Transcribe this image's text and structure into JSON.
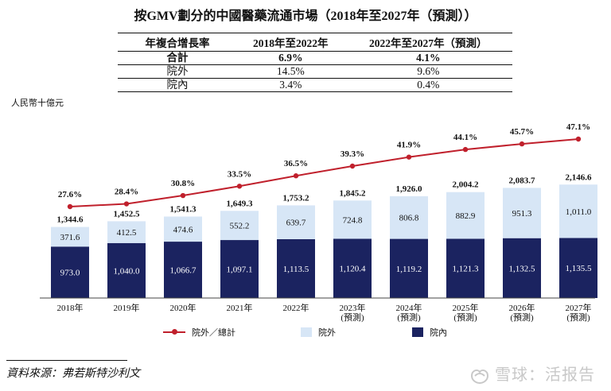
{
  "title": "按GMV劃分的中國醫藥流通市場（2018年至2027年（預測））",
  "cagr_table": {
    "headers": [
      "年複合增長率",
      "2018年至2022年",
      "2022年至2027年（預測）"
    ],
    "rows": [
      [
        "合計",
        "6.9%",
        "4.1%"
      ],
      [
        "院外",
        "14.5%",
        "9.6%"
      ],
      [
        "院內",
        "3.4%",
        "0.4%"
      ]
    ]
  },
  "unit": "人民幣十億元",
  "chart_data": {
    "type": "bar",
    "stacked": true,
    "categories": [
      "2018年",
      "2019年",
      "2020年",
      "2021年",
      "2022年",
      "2023年\n(預測)",
      "2024年\n(預測)",
      "2025年\n(預測)",
      "2026年\n(預測)",
      "2027年\n(預測)"
    ],
    "series": [
      {
        "name": "院內",
        "color": "#1b2360",
        "values": [
          973.0,
          1040.0,
          1066.7,
          1097.1,
          1113.5,
          1120.4,
          1119.2,
          1121.3,
          1132.5,
          1135.5
        ],
        "labels": [
          "973.0",
          "1,040.0",
          "1,066.7",
          "1,097.1",
          "1,113.5",
          "1,120.4",
          "1,119.2",
          "1,121.3",
          "1,132.5",
          "1,135.5"
        ]
      },
      {
        "name": "院外",
        "color": "#d7e6f6",
        "values": [
          371.6,
          412.5,
          474.6,
          552.2,
          639.7,
          724.8,
          806.8,
          882.9,
          951.3,
          1011.0
        ],
        "labels": [
          "371.6",
          "412.5",
          "474.6",
          "552.2",
          "639.7",
          "724.8",
          "806.8",
          "882.9",
          "951.3",
          "1,011.0"
        ]
      }
    ],
    "totals": [
      1344.6,
      1452.5,
      1541.3,
      1649.3,
      1753.2,
      1845.2,
      1926.0,
      2004.2,
      2083.7,
      2146.6
    ],
    "total_labels": [
      "1,344.6",
      "1,452.5",
      "1,541.3",
      "1,649.3",
      "1,753.2",
      "1,845.2",
      "1,926.0",
      "2,004.2",
      "2,083.7",
      "2,146.6"
    ],
    "line": {
      "name": "院外／總計",
      "color": "#c0202c",
      "values": [
        27.6,
        28.4,
        30.8,
        33.5,
        36.5,
        39.3,
        41.9,
        44.1,
        45.7,
        47.1
      ],
      "labels": [
        "27.6%",
        "28.4%",
        "30.8%",
        "33.5%",
        "36.5%",
        "39.3%",
        "41.9%",
        "44.1%",
        "45.7%",
        "47.1%"
      ]
    },
    "legend_position": "bottom",
    "grid": false
  },
  "source": "資料來源：弗若斯特沙利文",
  "watermark": "雪球：活报告"
}
